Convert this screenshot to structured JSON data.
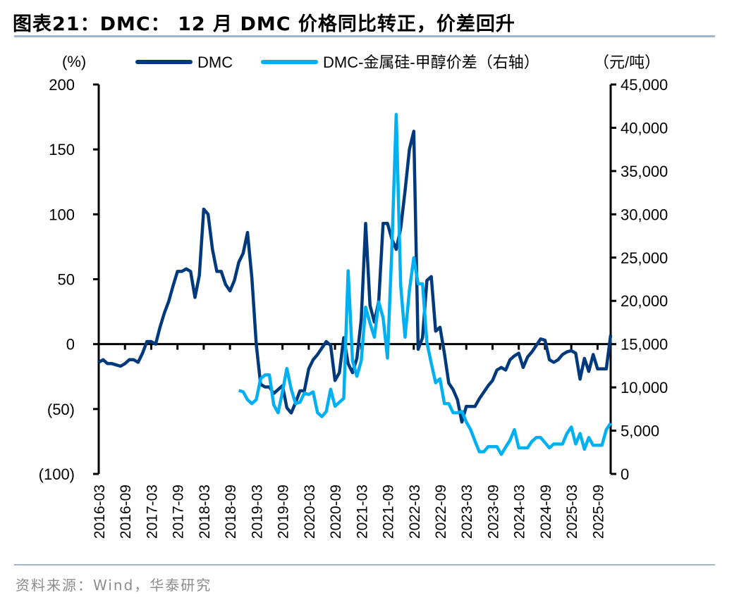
{
  "header": {
    "title": "图表21：DMC： 12 月 DMC 价格同比转正，价差回升"
  },
  "footer": {
    "source": "资料来源：Wind，华泰研究"
  },
  "chart_data": {
    "type": "line",
    "left_unit": "(%)",
    "right_unit": "（元/吨）",
    "ylim_left": [
      -100,
      200
    ],
    "yticks_left": [
      "(100)",
      "(50)",
      "0",
      "50",
      "100",
      "150",
      "200"
    ],
    "ylim_right": [
      0,
      45000
    ],
    "yticks_right": [
      "0",
      "5,000",
      "10,000",
      "15,000",
      "20,000",
      "25,000",
      "30,000",
      "35,000",
      "40,000",
      "45,000"
    ],
    "x_start": "2016-03",
    "x_end": "2025-12",
    "xticks": [
      "2016-03",
      "2016-09",
      "2017-03",
      "2017-09",
      "2018-03",
      "2018-09",
      "2019-03",
      "2019-09",
      "2020-03",
      "2020-09",
      "2021-03",
      "2021-09",
      "2022-03",
      "2022-09",
      "2023-03",
      "2023-09",
      "2024-03",
      "2024-09",
      "2025-03",
      "2025-09"
    ],
    "colors": {
      "dmc": "#003a7d",
      "spread": "#00b0f0"
    },
    "series": [
      {
        "name": "DMC",
        "axis": "left",
        "start": "2016-03",
        "values": [
          -14,
          -12,
          -15,
          -15,
          -16,
          -17,
          -15,
          -12,
          -12,
          -14,
          -7,
          2,
          2,
          0,
          13,
          24,
          33,
          45,
          56,
          56,
          58,
          56,
          36,
          53,
          104,
          100,
          73,
          56,
          56,
          46,
          41,
          49,
          63,
          70,
          86,
          51,
          0,
          -31,
          -33,
          -33,
          -38,
          -35,
          -32,
          -49,
          -53,
          -45,
          -36,
          -36,
          -19,
          -12,
          -8,
          -3,
          2,
          -1,
          -28,
          -22,
          5,
          -15,
          -22,
          -11,
          19,
          93,
          30,
          17,
          33,
          93,
          93,
          81,
          73,
          89,
          118,
          150,
          164,
          -4,
          5,
          49,
          52,
          10,
          13,
          -7,
          -30,
          -35,
          -43,
          -60,
          -48,
          -48,
          -48,
          -42,
          -37,
          -32,
          -28,
          -20,
          -18,
          -20,
          -12,
          -9,
          -7,
          -18,
          -10,
          -6,
          -1,
          4,
          3,
          -12,
          -14,
          -12,
          -8,
          -6,
          -5,
          -7,
          -27,
          -11,
          -21,
          -8,
          -19,
          -19,
          -19,
          7
        ]
      },
      {
        "name": "DMC-金属硅-甲醇价差（右轴）",
        "axis": "right",
        "start": "2018-11",
        "values": [
          9640,
          9500,
          8580,
          8130,
          8580,
          10990,
          11440,
          11440,
          7980,
          7070,
          9500,
          12190,
          9780,
          8130,
          8280,
          9330,
          9180,
          9480,
          7070,
          6620,
          7220,
          9780,
          7830,
          8280,
          8730,
          23480,
          13090,
          11290,
          13090,
          19260,
          17450,
          15800,
          19860,
          18060,
          13390,
          26030,
          41540,
          21820,
          15800,
          21220,
          24980,
          21970,
          21970,
          15200,
          12790,
          10540,
          10990,
          8130,
          8130,
          7070,
          7070,
          7220,
          6020,
          5120,
          3800,
          2560,
          2560,
          3160,
          3160,
          3160,
          2260,
          3100,
          3910,
          5120,
          3010,
          3010,
          3010,
          3760,
          4210,
          4210,
          3610,
          3010,
          3460,
          3460,
          3460,
          4670,
          5420,
          3460,
          4670,
          2860,
          4210,
          3310,
          3310,
          3310,
          5120,
          5870
        ]
      }
    ]
  }
}
